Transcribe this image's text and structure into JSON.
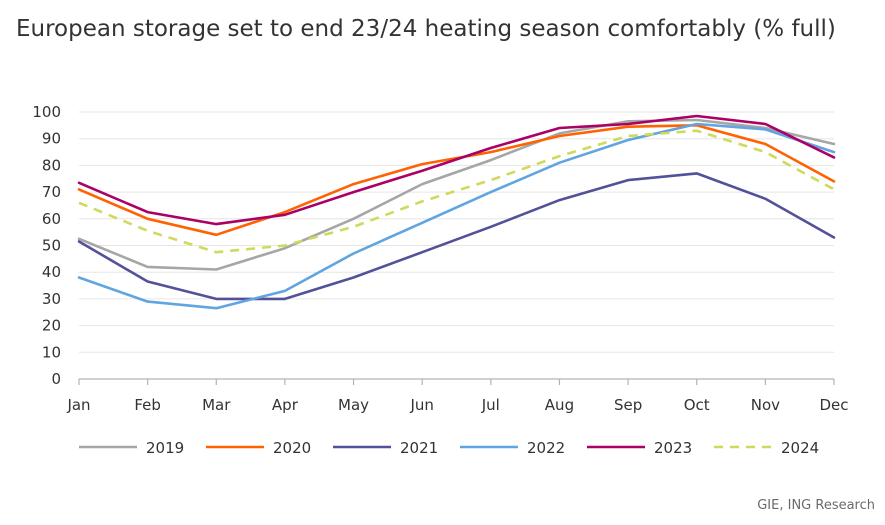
{
  "title": "European storage set to end 23/24 heating season comfortably (% full)",
  "source": "GIE, ING Research",
  "chart_data": {
    "type": "line",
    "title": "European storage set to end 23/24 heating season comfortably (% full)",
    "xlabel": "",
    "ylabel": "",
    "categories": [
      "Jan",
      "Feb",
      "Mar",
      "Apr",
      "May",
      "Jun",
      "Jul",
      "Aug",
      "Sep",
      "Oct",
      "Nov",
      "Dec"
    ],
    "ylim": [
      0,
      100
    ],
    "yticks": [
      0,
      10,
      20,
      30,
      40,
      50,
      60,
      70,
      80,
      90,
      100
    ],
    "grid": true,
    "legend": "bottom",
    "series": [
      {
        "name": "2019",
        "color": "#a6a6a6",
        "dashed": false,
        "values": [
          52.5,
          42,
          41,
          49,
          60,
          73,
          82,
          92,
          96.5,
          97,
          94,
          88
        ]
      },
      {
        "name": "2020",
        "color": "#ff6200",
        "dashed": false,
        "values": [
          71,
          60,
          54,
          62.5,
          73,
          80.5,
          85,
          91,
          94.5,
          95,
          88,
          74
        ]
      },
      {
        "name": "2021",
        "color": "#525199",
        "dashed": false,
        "values": [
          51.5,
          36.5,
          30,
          30,
          38,
          47.5,
          57,
          67,
          74.5,
          77,
          67.5,
          53
        ]
      },
      {
        "name": "2022",
        "color": "#60a5e0",
        "dashed": false,
        "values": [
          38,
          29,
          26.5,
          33,
          47,
          58.5,
          70,
          81,
          89.5,
          95.5,
          93.5,
          85
        ]
      },
      {
        "name": "2023",
        "color": "#ab0066",
        "dashed": false,
        "values": [
          73.5,
          62.5,
          58,
          61.5,
          70,
          78,
          86.5,
          94,
          95.5,
          98.5,
          95.5,
          83
        ]
      },
      {
        "name": "2024",
        "color": "#d0d95c",
        "dashed": true,
        "values": [
          66,
          55.5,
          47.5,
          50,
          57,
          66.5,
          74.5,
          83.5,
          91,
          93,
          85,
          71
        ]
      }
    ]
  }
}
